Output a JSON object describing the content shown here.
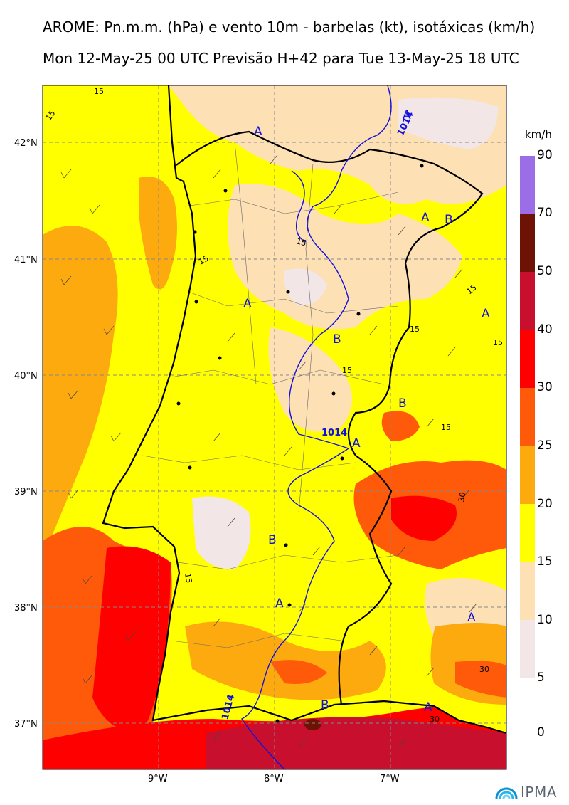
{
  "header": {
    "title_line1": "AROME: Pn.m.m. (hPa) e vento 10m - barbelas (kt), isotáxicas (km/h)",
    "title_line2": "Mon 12-May-25 00 UTC Previsão H+42 para Tue 13-May-25 18 UTC"
  },
  "axes": {
    "lat_labels": [
      "42°N",
      "41°N",
      "40°N",
      "39°N",
      "38°N",
      "37°N"
    ],
    "lon_labels": [
      "9°W",
      "8°W",
      "7°W"
    ]
  },
  "legend": {
    "unit": "km/h",
    "bins": [
      {
        "range": [
          5,
          10
        ],
        "color": "#f3e6e6"
      },
      {
        "range": [
          10,
          15
        ],
        "color": "#fde0b4"
      },
      {
        "range": [
          15,
          20
        ],
        "color": "#ffff00"
      },
      {
        "range": [
          20,
          25
        ],
        "color": "#fcaa0e"
      },
      {
        "range": [
          25,
          30
        ],
        "color": "#ff5a0a"
      },
      {
        "range": [
          30,
          40
        ],
        "color": "#ff0000"
      },
      {
        "range": [
          40,
          50
        ],
        "color": "#c8102e"
      },
      {
        "range": [
          50,
          70
        ],
        "color": "#6e1206"
      },
      {
        "range": [
          70,
          90
        ],
        "color": "#9b6ee8"
      }
    ],
    "tick_labels": [
      "90",
      "70",
      "50",
      "40",
      "30",
      "25",
      "20",
      "15",
      "10",
      "5",
      "0"
    ]
  },
  "isobars": {
    "labels": [
      "1014",
      "1014",
      "1014"
    ],
    "color": "#1010dd"
  },
  "isotach_labels": [
    "15",
    "15",
    "15",
    "15",
    "15",
    "15",
    "15",
    "15",
    "15",
    "15",
    "30",
    "30",
    "30"
  ],
  "pressure_centers": [
    "A",
    "A",
    "A",
    "B",
    "A",
    "B",
    "A",
    "B",
    "A",
    "B",
    "A",
    "A",
    "B",
    "A"
  ],
  "logo": {
    "text": "IPMA"
  }
}
